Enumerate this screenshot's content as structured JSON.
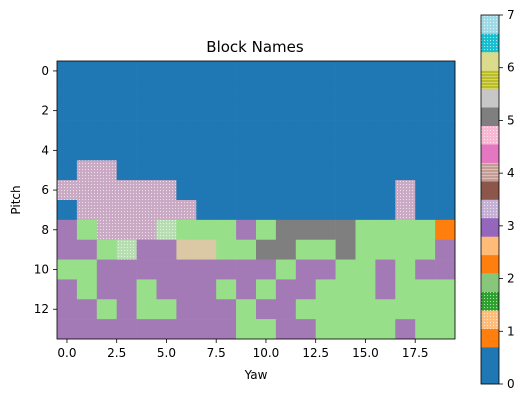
{
  "chart_data": {
    "type": "heatmap",
    "title": "Block Names",
    "xlabel": "Yaw",
    "ylabel": "Pitch",
    "x_range": [
      -0.5,
      19.5
    ],
    "y_range": [
      -0.5,
      13.5
    ],
    "y_inverted": true,
    "x_ticks": [
      0,
      2.5,
      5,
      7.5,
      10,
      12.5,
      15,
      17.5
    ],
    "x_tick_labels": [
      "0.0",
      "2.5",
      "5.0",
      "7.5",
      "10.0",
      "12.5",
      "15.0",
      "17.5"
    ],
    "y_ticks": [
      0,
      2,
      4,
      6,
      8,
      10,
      12
    ],
    "y_tick_labels": [
      "0",
      "2",
      "4",
      "6",
      "8",
      "10",
      "12"
    ],
    "grid": false,
    "colorbar": {
      "min": 0,
      "max": 7,
      "ticks": [
        0,
        1,
        2,
        3,
        4,
        5,
        6,
        7
      ],
      "tick_labels": [
        "0",
        "1",
        "2",
        "3",
        "4",
        "5",
        "6",
        "7"
      ],
      "bands": [
        {
          "color": "#1f77b4",
          "hatch": "none"
        },
        {
          "color": "#1f77b4",
          "hatch": "none"
        },
        {
          "color": "#ff7f0e",
          "hatch": "none"
        },
        {
          "color": "#ffbb78",
          "hatch": "dots"
        },
        {
          "color": "#2ca02c",
          "hatch": "dots"
        },
        {
          "color": "#98df8a",
          "hatch": "dense-dots"
        },
        {
          "color": "#ff7f0e",
          "hatch": "none"
        },
        {
          "color": "#ffbb78",
          "hatch": "none"
        },
        {
          "color": "#9467bd",
          "hatch": "none"
        },
        {
          "color": "#c5b0d5",
          "hatch": "dots"
        },
        {
          "color": "#8c564b",
          "hatch": "none"
        },
        {
          "color": "#c49c94",
          "hatch": "lines"
        },
        {
          "color": "#e377c2",
          "hatch": "none"
        },
        {
          "color": "#f7b6d2",
          "hatch": "dots"
        },
        {
          "color": "#7f7f7f",
          "hatch": "none"
        },
        {
          "color": "#c7c7c7",
          "hatch": "none"
        },
        {
          "color": "#bcbd22",
          "hatch": "lines"
        },
        {
          "color": "#dbdb8d",
          "hatch": "none"
        },
        {
          "color": "#17becf",
          "hatch": "dots"
        },
        {
          "color": "#9edae5",
          "hatch": "dots"
        }
      ]
    },
    "category_colors": {
      "0": "#1f77b4",
      "1": "#ff7f0e",
      "2": "#98df8a",
      "3": "#a37ab6",
      "4": "#c9a9c3",
      "5": "#7f7f7f",
      "6": "#dbc8a4",
      "7": "#b5ddb0"
    },
    "category_hatches": {
      "4": "dots",
      "7": "dots"
    },
    "values": [
      [
        0,
        0,
        0,
        0,
        0,
        0,
        0,
        0,
        0,
        0,
        0,
        0,
        0,
        0,
        0,
        0,
        0,
        0,
        0,
        0
      ],
      [
        0,
        0,
        0,
        0,
        0,
        0,
        0,
        0,
        0,
        0,
        0,
        0,
        0,
        0,
        0,
        0,
        0,
        0,
        0,
        0
      ],
      [
        0,
        0,
        0,
        0,
        0,
        0,
        0,
        0,
        0,
        0,
        0,
        0,
        0,
        0,
        0,
        0,
        0,
        0,
        0,
        0
      ],
      [
        0,
        0,
        0,
        0,
        0,
        0,
        0,
        0,
        0,
        0,
        0,
        0,
        0,
        0,
        0,
        0,
        0,
        0,
        0,
        0
      ],
      [
        0,
        0,
        0,
        0,
        0,
        0,
        0,
        0,
        0,
        0,
        0,
        0,
        0,
        0,
        0,
        0,
        0,
        0,
        0,
        0
      ],
      [
        0,
        4,
        4,
        0,
        0,
        0,
        0,
        0,
        0,
        0,
        0,
        0,
        0,
        0,
        0,
        0,
        0,
        0,
        0,
        0
      ],
      [
        4,
        4,
        4,
        4,
        4,
        4,
        0,
        0,
        0,
        0,
        0,
        0,
        0,
        0,
        0,
        0,
        0,
        4,
        0,
        0
      ],
      [
        0,
        4,
        4,
        4,
        4,
        4,
        4,
        0,
        0,
        0,
        0,
        0,
        0,
        0,
        0,
        0,
        0,
        4,
        0,
        0
      ],
      [
        3,
        2,
        4,
        4,
        4,
        7,
        2,
        2,
        2,
        3,
        2,
        5,
        5,
        5,
        5,
        2,
        2,
        2,
        2,
        1
      ],
      [
        3,
        3,
        2,
        7,
        3,
        3,
        6,
        6,
        2,
        2,
        5,
        5,
        2,
        2,
        5,
        2,
        2,
        2,
        2,
        3
      ],
      [
        2,
        2,
        3,
        3,
        3,
        3,
        3,
        3,
        3,
        3,
        3,
        2,
        3,
        3,
        2,
        2,
        3,
        2,
        3,
        3
      ],
      [
        3,
        2,
        3,
        3,
        2,
        3,
        3,
        3,
        2,
        3,
        2,
        3,
        3,
        2,
        2,
        2,
        3,
        2,
        2,
        2
      ],
      [
        3,
        3,
        2,
        3,
        2,
        2,
        3,
        3,
        3,
        2,
        3,
        3,
        2,
        2,
        2,
        2,
        2,
        2,
        2,
        2
      ],
      [
        3,
        3,
        3,
        3,
        3,
        3,
        3,
        3,
        3,
        2,
        2,
        3,
        3,
        2,
        2,
        2,
        2,
        3,
        2,
        2
      ]
    ]
  }
}
